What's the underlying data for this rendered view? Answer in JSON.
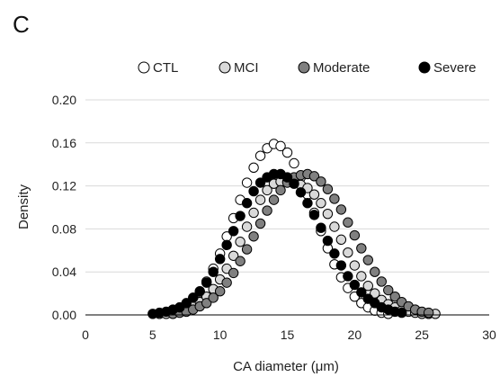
{
  "panel_label": "C",
  "chart_data": {
    "type": "scatter",
    "xlabel": "CA diameter (μm)",
    "ylabel": "Density",
    "xlim": [
      0,
      30
    ],
    "ylim": [
      0,
      0.2
    ],
    "x_ticks": [
      "0",
      "5",
      "10",
      "15",
      "20",
      "25",
      "30"
    ],
    "y_ticks": [
      "0.00",
      "0.04",
      "0.08",
      "0.12",
      "0.16",
      "0.20"
    ],
    "grid": "horizontal",
    "legend_position": "top",
    "series": [
      {
        "name": "CTL",
        "fill": "#ffffff",
        "stroke": "#000000",
        "points": [
          [
            5.5,
            0.001
          ],
          [
            6.0,
            0.002
          ],
          [
            6.5,
            0.003
          ],
          [
            7.0,
            0.005
          ],
          [
            7.5,
            0.009
          ],
          [
            8.0,
            0.014
          ],
          [
            8.5,
            0.021
          ],
          [
            9.0,
            0.031
          ],
          [
            9.5,
            0.043
          ],
          [
            10.0,
            0.057
          ],
          [
            10.5,
            0.073
          ],
          [
            11.0,
            0.09
          ],
          [
            11.5,
            0.107
          ],
          [
            12.0,
            0.123
          ],
          [
            12.5,
            0.137
          ],
          [
            13.0,
            0.148
          ],
          [
            13.5,
            0.155
          ],
          [
            14.0,
            0.159
          ],
          [
            14.5,
            0.157
          ],
          [
            15.0,
            0.151
          ],
          [
            15.5,
            0.141
          ],
          [
            16.0,
            0.128
          ],
          [
            16.5,
            0.112
          ],
          [
            17.0,
            0.095
          ],
          [
            17.5,
            0.078
          ],
          [
            18.0,
            0.062
          ],
          [
            18.5,
            0.047
          ],
          [
            19.0,
            0.035
          ],
          [
            19.5,
            0.025
          ],
          [
            20.0,
            0.017
          ],
          [
            20.5,
            0.011
          ],
          [
            21.0,
            0.007
          ],
          [
            21.5,
            0.004
          ],
          [
            22.0,
            0.002
          ],
          [
            22.5,
            0.001
          ]
        ]
      },
      {
        "name": "MCI",
        "fill": "#d9d9d9",
        "stroke": "#000000",
        "points": [
          [
            6.0,
            0.001
          ],
          [
            6.5,
            0.002
          ],
          [
            7.0,
            0.003
          ],
          [
            7.5,
            0.005
          ],
          [
            8.0,
            0.008
          ],
          [
            8.5,
            0.012
          ],
          [
            9.0,
            0.017
          ],
          [
            9.5,
            0.024
          ],
          [
            10.0,
            0.033
          ],
          [
            10.5,
            0.043
          ],
          [
            11.0,
            0.055
          ],
          [
            11.5,
            0.068
          ],
          [
            12.0,
            0.082
          ],
          [
            12.5,
            0.095
          ],
          [
            13.0,
            0.107
          ],
          [
            13.5,
            0.116
          ],
          [
            14.0,
            0.122
          ],
          [
            14.5,
            0.124
          ],
          [
            15.0,
            0.124
          ],
          [
            15.5,
            0.123
          ],
          [
            16.0,
            0.121
          ],
          [
            16.5,
            0.118
          ],
          [
            17.0,
            0.112
          ],
          [
            17.5,
            0.104
          ],
          [
            18.0,
            0.094
          ],
          [
            18.5,
            0.082
          ],
          [
            19.0,
            0.07
          ],
          [
            19.5,
            0.058
          ],
          [
            20.0,
            0.046
          ],
          [
            20.5,
            0.036
          ],
          [
            21.0,
            0.027
          ],
          [
            21.5,
            0.02
          ],
          [
            22.0,
            0.014
          ],
          [
            22.5,
            0.01
          ],
          [
            23.0,
            0.007
          ],
          [
            23.5,
            0.004
          ],
          [
            24.0,
            0.003
          ],
          [
            24.5,
            0.002
          ],
          [
            25.0,
            0.001
          ],
          [
            25.5,
            0.001
          ],
          [
            26.0,
            0.001
          ]
        ]
      },
      {
        "name": "Moderate",
        "fill": "#808080",
        "stroke": "#000000",
        "points": [
          [
            6.5,
            0.001
          ],
          [
            7.0,
            0.002
          ],
          [
            7.5,
            0.003
          ],
          [
            8.0,
            0.005
          ],
          [
            8.5,
            0.008
          ],
          [
            9.0,
            0.011
          ],
          [
            9.5,
            0.016
          ],
          [
            10.0,
            0.022
          ],
          [
            10.5,
            0.03
          ],
          [
            11.0,
            0.039
          ],
          [
            11.5,
            0.05
          ],
          [
            12.0,
            0.061
          ],
          [
            12.5,
            0.073
          ],
          [
            13.0,
            0.085
          ],
          [
            13.5,
            0.097
          ],
          [
            14.0,
            0.107
          ],
          [
            14.5,
            0.116
          ],
          [
            15.0,
            0.123
          ],
          [
            15.5,
            0.128
          ],
          [
            16.0,
            0.13
          ],
          [
            16.5,
            0.131
          ],
          [
            17.0,
            0.129
          ],
          [
            17.5,
            0.124
          ],
          [
            18.0,
            0.117
          ],
          [
            18.5,
            0.108
          ],
          [
            19.0,
            0.098
          ],
          [
            19.5,
            0.086
          ],
          [
            20.0,
            0.074
          ],
          [
            20.5,
            0.062
          ],
          [
            21.0,
            0.051
          ],
          [
            21.5,
            0.04
          ],
          [
            22.0,
            0.031
          ],
          [
            22.5,
            0.023
          ],
          [
            23.0,
            0.017
          ],
          [
            23.5,
            0.012
          ],
          [
            24.0,
            0.008
          ],
          [
            24.5,
            0.005
          ],
          [
            25.0,
            0.003
          ],
          [
            25.5,
            0.002
          ]
        ]
      },
      {
        "name": "Severe",
        "fill": "#000000",
        "stroke": "#000000",
        "points": [
          [
            5.0,
            0.001
          ],
          [
            5.5,
            0.002
          ],
          [
            6.0,
            0.003
          ],
          [
            6.5,
            0.005
          ],
          [
            7.0,
            0.007
          ],
          [
            7.5,
            0.011
          ],
          [
            8.0,
            0.016
          ],
          [
            8.5,
            0.022
          ],
          [
            9.0,
            0.03
          ],
          [
            9.5,
            0.04
          ],
          [
            10.0,
            0.052
          ],
          [
            10.5,
            0.065
          ],
          [
            11.0,
            0.078
          ],
          [
            11.5,
            0.092
          ],
          [
            12.0,
            0.104
          ],
          [
            12.5,
            0.115
          ],
          [
            13.0,
            0.123
          ],
          [
            13.5,
            0.128
          ],
          [
            14.0,
            0.131
          ],
          [
            14.5,
            0.131
          ],
          [
            15.0,
            0.128
          ],
          [
            15.5,
            0.122
          ],
          [
            16.0,
            0.114
          ],
          [
            16.5,
            0.104
          ],
          [
            17.0,
            0.093
          ],
          [
            17.5,
            0.081
          ],
          [
            18.0,
            0.069
          ],
          [
            18.5,
            0.057
          ],
          [
            19.0,
            0.046
          ],
          [
            19.5,
            0.036
          ],
          [
            20.0,
            0.028
          ],
          [
            20.5,
            0.021
          ],
          [
            21.0,
            0.015
          ],
          [
            21.5,
            0.011
          ],
          [
            22.0,
            0.007
          ],
          [
            22.5,
            0.005
          ],
          [
            23.0,
            0.003
          ],
          [
            23.5,
            0.002
          ]
        ]
      }
    ]
  }
}
